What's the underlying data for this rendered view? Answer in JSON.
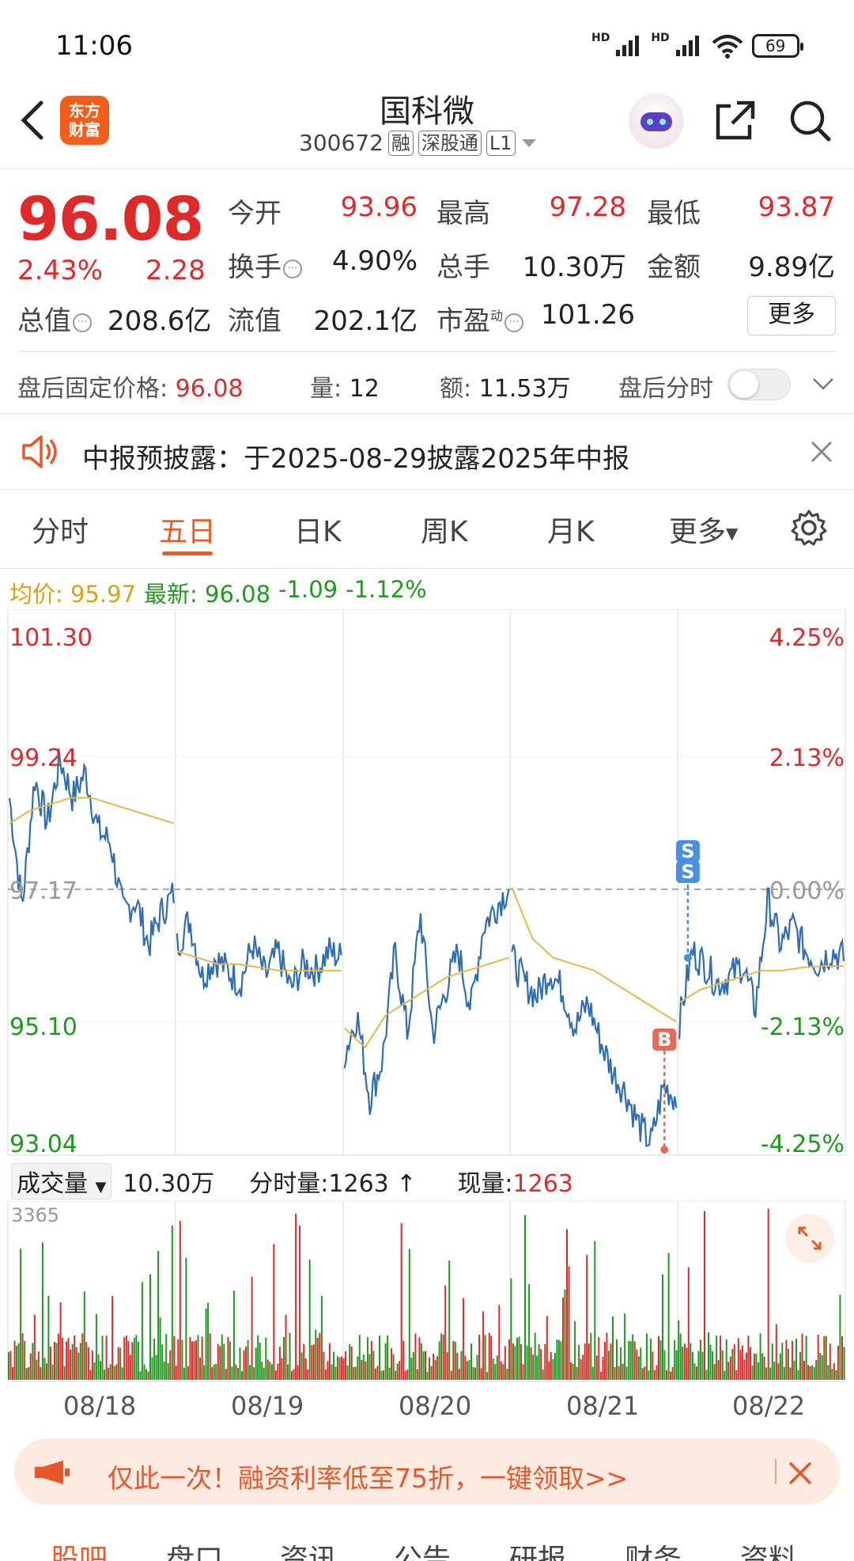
{
  "status_bar": {
    "time": "11:06",
    "sim1": "HD",
    "sim2": "HD",
    "battery": "69"
  },
  "header": {
    "stock_name": "国科微",
    "stock_code": "300672",
    "tags": [
      "融",
      "深股通",
      "L1"
    ],
    "logo_text_line1": "东方",
    "logo_text_line2": "财富"
  },
  "quote": {
    "price": "96.08",
    "change_pct": "2.43%",
    "change_abs": "2.28",
    "rows": [
      [
        {
          "label": "今开",
          "value": "93.96",
          "color": "red"
        },
        {
          "label": "最高",
          "value": "97.28",
          "color": "red"
        },
        {
          "label": "最低",
          "value": "93.87",
          "color": "red"
        }
      ],
      [
        {
          "label": "换手",
          "value": "4.90%",
          "color": "dark"
        },
        {
          "label": "总手",
          "value": "10.30万",
          "color": "dark"
        },
        {
          "label": "金额",
          "value": "9.89亿",
          "color": "dark"
        }
      ]
    ],
    "total_value_label": "总值",
    "total_value": "208.6亿",
    "float_value_label": "流值",
    "float_value": "202.1亿",
    "pe_label": "市盈",
    "pe_sup": "动",
    "pe_value": "101.26",
    "more_label": "更多"
  },
  "after_hours": {
    "price_label": "盘后固定价格:",
    "price": "96.08",
    "vol_label": "量:",
    "vol": "12",
    "amount_label": "额:",
    "amount": "11.53万",
    "toggle_label": "盘后分时"
  },
  "notice": {
    "text": "中报预披露：于2025-08-29披露2025年中报"
  },
  "tabs": [
    "分时",
    "五日",
    "日K",
    "周K",
    "月K",
    "更多"
  ],
  "legend": {
    "avg_label": "均价:",
    "avg": "95.97",
    "latest_label": "最新:",
    "latest": "96.08",
    "chg": "-1.09",
    "chg_pct": "-1.12%"
  },
  "chart_data": {
    "type": "line",
    "y_axis_left": [
      "101.30",
      "99.24",
      "97.17",
      "95.10",
      "93.04"
    ],
    "y_axis_right": [
      "4.25%",
      "2.13%",
      "0.00%",
      "-2.13%",
      "-4.25%"
    ],
    "ylim": [
      93.04,
      101.3
    ],
    "base": 97.17,
    "x_labels": [
      "08/18",
      "08/19",
      "08/20",
      "08/21",
      "08/22"
    ],
    "series": [
      {
        "name": "最新",
        "color": "#2f6db5",
        "values": [
          [
            98.6,
            96.9,
            98.9,
            98.2,
            99.2,
            98.6,
            99.0,
            98.1,
            97.9,
            96.8,
            97.0,
            96.3,
            96.8,
            97.1
          ],
          [
            96.3,
            96.7,
            95.8,
            96.1,
            95.9,
            95.7,
            96.3,
            95.8,
            96.2,
            95.6,
            96.0,
            95.9,
            96.2,
            96.1
          ],
          [
            94.6,
            95.2,
            93.9,
            94.5,
            96.2,
            94.9,
            96.8,
            94.9,
            95.6,
            96.2,
            95.3,
            96.6,
            96.9,
            97.2
          ],
          [
            96.1,
            95.7,
            95.5,
            95.9,
            95.6,
            95.0,
            95.4,
            94.8,
            94.3,
            94.0,
            93.5,
            93.2,
            94.1,
            93.9
          ],
          [
            95.1,
            96.2,
            96.0,
            95.7,
            95.8,
            96.0,
            95.3,
            97.0,
            96.3,
            96.6,
            96.2,
            96.0,
            96.2,
            96.1
          ]
        ]
      },
      {
        "name": "均价",
        "color": "#e6b84a",
        "values": [
          [
            98.2,
            98.4,
            98.5,
            98.6,
            98.6,
            98.5,
            98.4,
            98.3,
            98.2
          ],
          [
            96.2,
            96.1,
            96.0,
            96.0,
            95.95,
            95.9,
            95.9,
            95.9,
            95.9
          ],
          [
            95.0,
            94.7,
            95.2,
            95.4,
            95.6,
            95.8,
            95.9,
            96.0,
            96.1
          ],
          [
            97.2,
            96.4,
            96.1,
            96.0,
            95.9,
            95.7,
            95.5,
            95.3,
            95.1
          ],
          [
            95.4,
            95.6,
            95.7,
            95.8,
            95.9,
            95.9,
            95.95,
            95.97,
            95.97
          ]
        ]
      }
    ],
    "markers": [
      {
        "label": "S",
        "day": 4,
        "pos": 0.06,
        "price": 96.1
      },
      {
        "label": "B",
        "day": 3,
        "pos": 0.92,
        "price": 93.1
      }
    ]
  },
  "volume": {
    "select_label": "成交量",
    "total": "10.30万",
    "minute_label": "分时量:",
    "minute": "1263",
    "current_label": "现量:",
    "current": "1263",
    "max_label": "3365"
  },
  "promo": {
    "text": "仅此一次！融资利率低至75折，一键领取>>"
  },
  "bottom_tabs": [
    "股吧",
    "盘口",
    "资讯",
    "公告",
    "研报",
    "财务",
    "资料"
  ],
  "colors": {
    "accent": "#f05a22",
    "up": "#e02a2a",
    "down": "#1e9a1e",
    "avg": "#e6b84a",
    "line": "#2f6db5"
  }
}
